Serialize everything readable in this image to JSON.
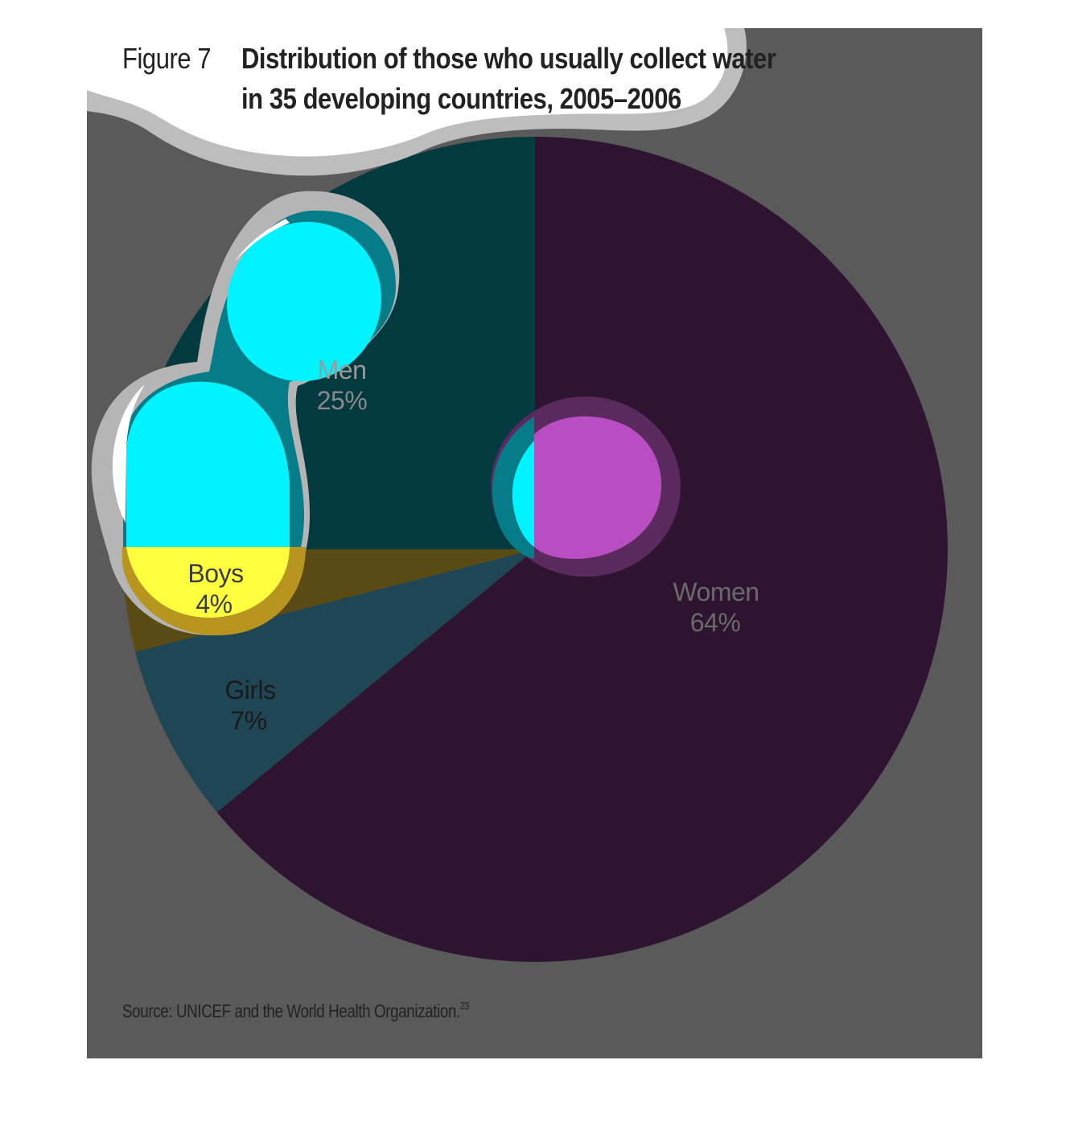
{
  "figure_label": "Figure 7",
  "title": "Distribution of those who usually collect water\nin 35 developing countries, 2005–2006",
  "source": "Source: UNICEF and the World Health Organization.",
  "source_ref": "23",
  "chart_data": {
    "type": "pie",
    "categories": [
      "Women",
      "Girls",
      "Boys",
      "Men"
    ],
    "values": [
      64,
      7,
      4,
      25
    ],
    "value_labels": [
      "64%",
      "7%",
      "4%",
      "25%"
    ],
    "unit": "%",
    "colors": {
      "Women": "#2e1430",
      "Girls": "#1f4654",
      "Boys": "#5a4a14",
      "Men": "#033a40",
      "panel": "#5a5a5a",
      "cloud": "#ffffff",
      "cloud_halo": "#bdbdbd",
      "cyan_blob": "#00f3ff",
      "yellow_blob": "#ffff40",
      "magenta_blob": "#b84ec2"
    }
  }
}
